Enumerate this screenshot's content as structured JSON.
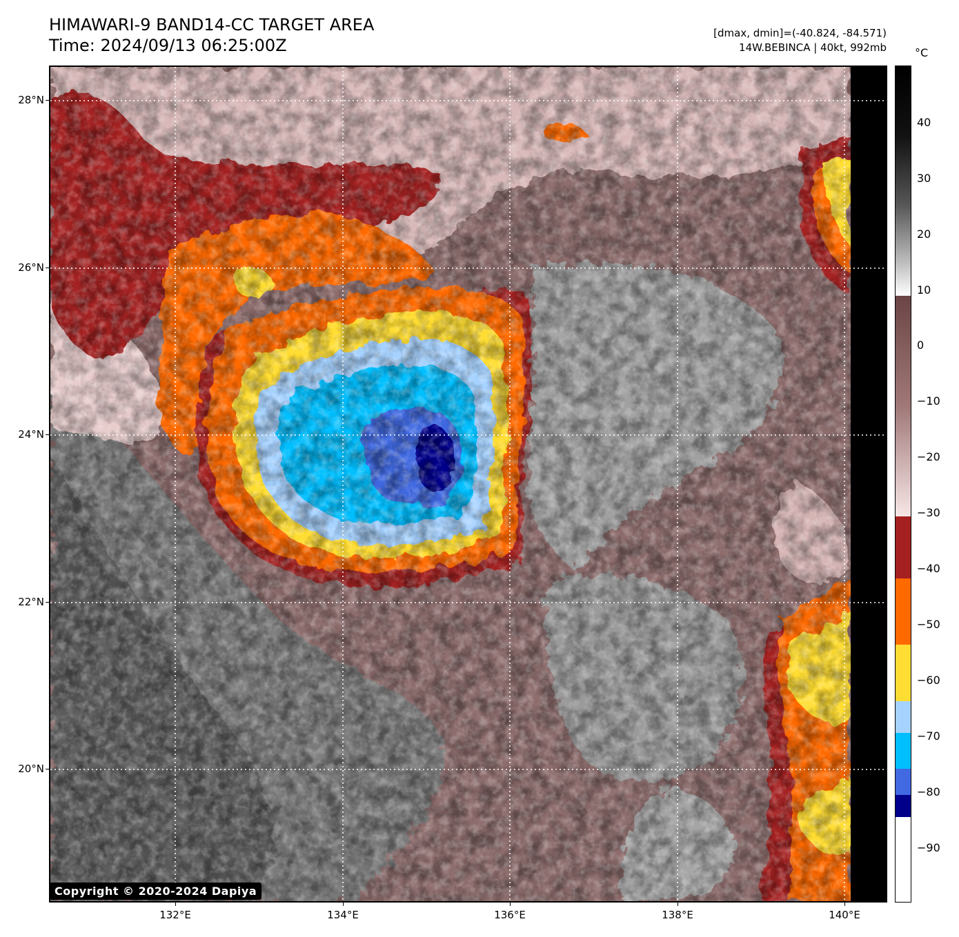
{
  "title": {
    "line1": "HIMAWARI-9 BAND14-CC TARGET AREA",
    "line2": "Time: 2024/09/13 06:25:00Z"
  },
  "info": {
    "line1": "[dmax, dmin]=(-40.824, -84.571)",
    "line2": "14W.BEBINCA | 40kt, 992mb"
  },
  "map": {
    "lat_labels": [
      "28°N",
      "26°N",
      "24°N",
      "22°N",
      "20°N"
    ],
    "lon_labels": [
      "132°E",
      "134°E",
      "136°E",
      "138°E",
      "140°E"
    ]
  },
  "colorbar": {
    "unit": "°C",
    "tick_labels": [
      "40",
      "30",
      "20",
      "10",
      "0",
      "−10",
      "−20",
      "−30",
      "−40",
      "−50",
      "−60",
      "−70",
      "−80",
      "−90"
    ],
    "colors": {
      "black": "#000000",
      "white": "#ffffff",
      "brown_warm": "#7d5050",
      "pink": "#f3dcdc",
      "dark_red": "#a02020",
      "orange": "#ff6a00",
      "yellow": "#ffdd33",
      "light_blue": "#a6d2ff",
      "cyan": "#00bfff",
      "royal_blue": "#4169e1",
      "navy": "#00008b"
    }
  },
  "copyright": "Copyright © 2020-2024 Dapiya"
}
